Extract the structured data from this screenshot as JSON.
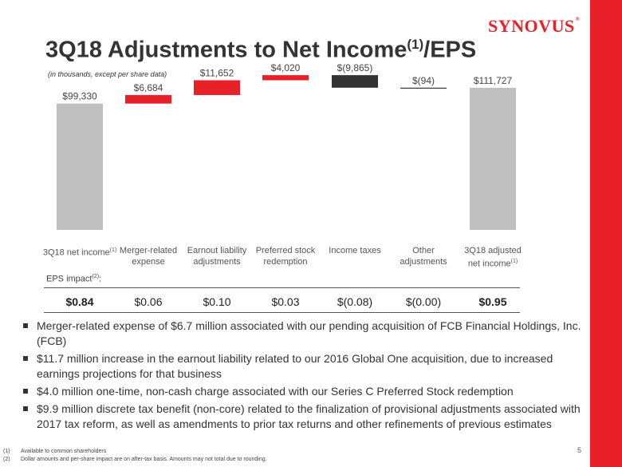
{
  "brand": {
    "logo": "SYNOVUS",
    "mark": "®",
    "accent_color": "#e8202a"
  },
  "slide": {
    "title": "3Q18 Adjustments to Net Income",
    "title_sup": "(1)",
    "title_suffix": "/EPS",
    "subtitle": "(in thousands, except per share data)",
    "page_number": "5"
  },
  "chart_data": {
    "type": "bar",
    "subtype": "waterfall",
    "unit": "thousands",
    "categories": [
      "3Q18 net income(1)",
      "Merger-related expense",
      "Earnout liability adjustments",
      "Preferred stock redemption",
      "Income taxes",
      "Other adjustments",
      "3Q18 adjusted net income(1)"
    ],
    "values": [
      99330,
      6684,
      11652,
      4020,
      -9865,
      -94,
      111727
    ],
    "measures": [
      "total",
      "relative",
      "relative",
      "relative",
      "relative",
      "relative",
      "total"
    ],
    "data_labels": [
      "$99,330",
      "$6,684",
      "$11,652",
      "$4,020",
      "$(9,865)",
      "$(94)",
      "$111,727"
    ],
    "colors": {
      "total": "#c0c0c0",
      "increase": "#e8202a",
      "decrease": "#333333"
    },
    "ylim": [
      0,
      125000
    ],
    "grid": false,
    "legend": "none"
  },
  "categories_display": [
    {
      "lines": [
        "3Q18 net income"
      ],
      "sup": "(1)"
    },
    {
      "lines": [
        "Merger-related",
        "expense"
      ],
      "sup": ""
    },
    {
      "lines": [
        "Earnout liability",
        "adjustments"
      ],
      "sup": ""
    },
    {
      "lines": [
        "Preferred stock",
        "redemption"
      ],
      "sup": ""
    },
    {
      "lines": [
        "Income taxes"
      ],
      "sup": ""
    },
    {
      "lines": [
        "Other",
        "adjustments"
      ],
      "sup": ""
    },
    {
      "lines": [
        "3Q18 adjusted",
        "net income"
      ],
      "sup": "(1)"
    }
  ],
  "eps": {
    "label": "EPS impact",
    "label_sup": "(2)",
    "label_suffix": ":",
    "values": [
      "$0.84",
      "$0.06",
      "$0.10",
      "$0.03",
      "$(0.08)",
      "$(0.00)",
      "$0.95"
    ]
  },
  "bullets": [
    "Merger-related expense of $6.7 million associated with our pending acquisition of FCB Financial Holdings, Inc. (FCB)",
    "$11.7 million increase in the earnout liability related to our 2016 Global One acquisition, due to increased earnings projections for that business",
    "$4.0 million one-time, non-cash charge associated with our Series C Preferred Stock redemption",
    "$9.9 million discrete tax benefit (non-core) related to the finalization of provisional adjustments associated with 2017 tax reform, as well as amendments to prior tax returns and other refinements of previous estimates"
  ],
  "footnotes": [
    {
      "num": "(1)",
      "text": "Available to common shareholders"
    },
    {
      "num": "(2)",
      "text": "Dollar amounts and per-share impact are on after-tax basis. Amounts may not total due to rounding."
    }
  ]
}
